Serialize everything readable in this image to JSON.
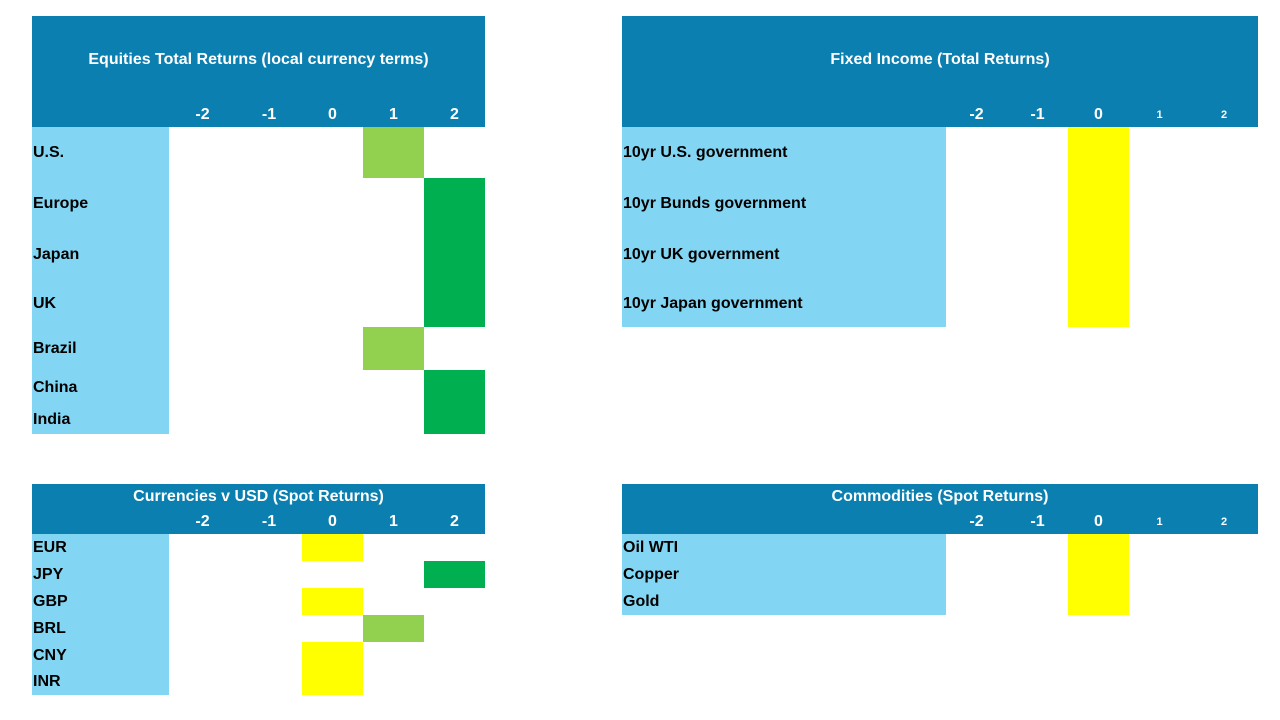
{
  "panels": [
    {
      "title": "Equities Total Returns (local currency terms)",
      "columns": [
        -2,
        -1,
        0,
        1,
        2
      ],
      "column_colors": [
        null,
        null,
        "#ffff00",
        "#92d050",
        "#00b050"
      ],
      "rows": [
        {
          "label": "U.S.",
          "value": 1
        },
        {
          "label": "Europe",
          "value": 2
        },
        {
          "label": "Japan",
          "value": 2
        },
        {
          "label": "UK",
          "value": 2
        },
        {
          "label": "Brazil",
          "value": 1
        },
        {
          "label": "China",
          "value": 2
        },
        {
          "label": "India",
          "value": 2
        }
      ]
    },
    {
      "title": "Fixed Income (Total Returns)",
      "columns": [
        -2,
        -1,
        0,
        1,
        2
      ],
      "column_colors": [
        null,
        null,
        "#ffff00",
        "#92d050",
        "#00b050"
      ],
      "rows": [
        {
          "label": "10yr U.S. government",
          "value": 0
        },
        {
          "label": "10yr Bunds government",
          "value": 0
        },
        {
          "label": "10yr UK government",
          "value": 0
        },
        {
          "label": "10yr Japan government",
          "value": 0
        }
      ]
    },
    {
      "title": "Currencies v USD (Spot Returns)",
      "columns": [
        -2,
        -1,
        0,
        1,
        2
      ],
      "column_colors": [
        null,
        null,
        "#ffff00",
        "#92d050",
        "#00b050"
      ],
      "rows": [
        {
          "label": "EUR",
          "value": 0
        },
        {
          "label": "JPY",
          "value": 2
        },
        {
          "label": "GBP",
          "value": 0
        },
        {
          "label": "BRL",
          "value": 1
        },
        {
          "label": "CNY",
          "value": 0
        },
        {
          "label": "INR",
          "value": 0
        }
      ]
    },
    {
      "title": "Commodities (Spot Returns)",
      "columns": [
        -2,
        -1,
        0,
        1,
        2
      ],
      "column_colors": [
        null,
        null,
        "#ffff00",
        "#92d050",
        "#00b050"
      ],
      "rows": [
        {
          "label": "Oil WTI",
          "value": 0
        },
        {
          "label": "Copper",
          "value": 0
        },
        {
          "label": "Gold",
          "value": 0
        }
      ]
    }
  ]
}
